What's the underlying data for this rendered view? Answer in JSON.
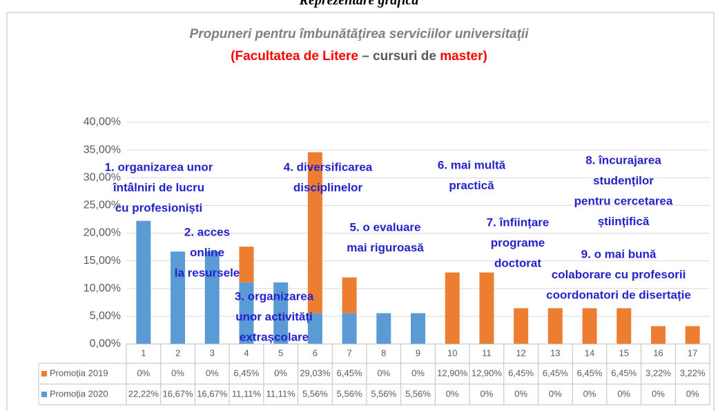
{
  "chart_data": {
    "type": "stacked_bar",
    "heading": "Reprezentare grafică",
    "title": "Propuneri pentru îmbunătăţirea  serviciilor universitaţii",
    "subtitle_parts": [
      "(Facultatea de Litere",
      "– cursuri de",
      "master)"
    ],
    "categories": [
      "1",
      "2",
      "3",
      "4",
      "5",
      "6",
      "7",
      "8",
      "9",
      "10",
      "11",
      "12",
      "13",
      "14",
      "15",
      "16",
      "17"
    ],
    "series": [
      {
        "name": "Promoția 2020",
        "color": "#5b9bd5",
        "values": [
          22.22,
          16.67,
          16.67,
          11.11,
          11.11,
          5.56,
          5.56,
          5.56,
          5.56,
          0,
          0,
          0,
          0,
          0,
          0,
          0,
          0
        ],
        "value_labels": [
          "22,22%",
          "16,67%",
          "16,67%",
          "11,11%",
          "11,11%",
          "5,56%",
          "5,56%",
          "5,56%",
          "5,56%",
          "0%",
          "0%",
          "0%",
          "0%",
          "0%",
          "0%",
          "0%",
          "0%"
        ]
      },
      {
        "name": "Promoția 2019",
        "color": "#ed7d31",
        "values": [
          0,
          0,
          0,
          6.45,
          0,
          29.03,
          6.45,
          0,
          0,
          12.9,
          12.9,
          6.45,
          6.45,
          6.45,
          6.45,
          3.22,
          3.22
        ],
        "value_labels": [
          "0%",
          "0%",
          "0%",
          "6,45%",
          "0%",
          "29,03%",
          "6,45%",
          "0%",
          "0%",
          "12,90%",
          "12,90%",
          "6,45%",
          "6,45%",
          "6,45%",
          "6,45%",
          "3,22%",
          "3,22%"
        ]
      }
    ],
    "ylim": [
      0,
      40
    ],
    "yticks": [
      {
        "value": 0,
        "label": "0,00%"
      },
      {
        "value": 5,
        "label": "5,00%"
      },
      {
        "value": 10,
        "label": "10,00%"
      },
      {
        "value": 15,
        "label": "15,00%"
      },
      {
        "value": 20,
        "label": "20,00%"
      },
      {
        "value": 25,
        "label": "25,00%"
      },
      {
        "value": 30,
        "label": "30,00%"
      },
      {
        "value": 35,
        "label": "35,00%"
      },
      {
        "value": 40,
        "label": "40,00%"
      }
    ],
    "grid": true,
    "annotations": [
      [
        "1. organizarea unor",
        "întâlniri de lucru",
        "cu profesioniști"
      ],
      [
        "2. acces",
        "online",
        "la resursele"
      ],
      [
        "3. organizarea",
        "unor activități",
        "extrașcolare"
      ],
      [
        "4. diversificarea",
        "disciplinelor"
      ],
      [
        "5. o evaluare",
        "mai riguroasă"
      ],
      [
        "6. mai multă",
        "practică"
      ],
      [
        "7. înființare",
        "programe",
        "doctorat"
      ],
      [
        "8. încurajarea",
        "studenților",
        "pentru cercetarea",
        "științifică"
      ],
      [
        "9. o mai bună",
        "colaborare cu profesorii",
        "coordonatori de disertație"
      ]
    ]
  }
}
